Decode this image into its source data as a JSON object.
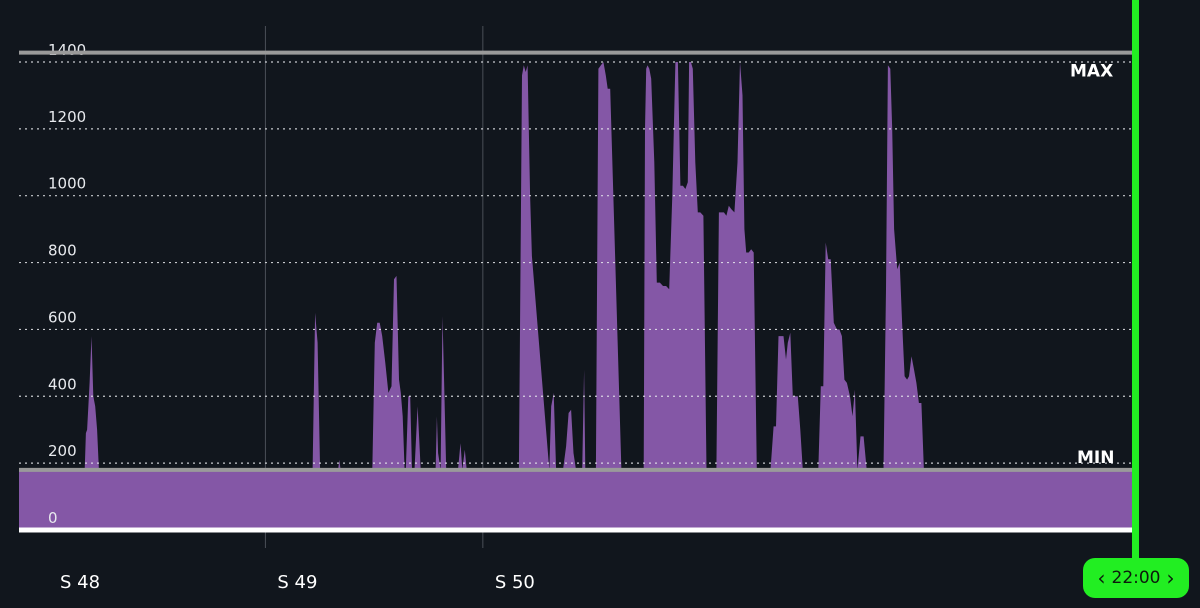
{
  "chart_data": {
    "type": "area",
    "title": "",
    "xlabel": "",
    "ylabel": "",
    "ylim": [
      0,
      1400
    ],
    "yticks": [
      0,
      200,
      400,
      600,
      800,
      1000,
      1200,
      1400
    ],
    "grid": true,
    "week_markers": [
      {
        "label": "S 48",
        "day": 0
      },
      {
        "label": "S 49",
        "day": 7
      },
      {
        "label": "S 50",
        "day": 14
      }
    ],
    "bands": {
      "max": {
        "label": "MAX",
        "value": 1380
      },
      "min": {
        "label": "MIN",
        "value": 180
      }
    },
    "baseline_value": 180,
    "series": [
      {
        "color": "#8457a6",
        "x": [
          1.18,
          1.22,
          1.26,
          1.34,
          1.4,
          1.46,
          1.52,
          1.58,
          1.64,
          1.78,
          8.52,
          8.6,
          8.68,
          8.76,
          9.34,
          9.38,
          9.42,
          10.44,
          10.52,
          10.6,
          10.68,
          10.76,
          10.86,
          10.96,
          11.06,
          11.14,
          11.22,
          11.3,
          11.36,
          11.42,
          11.48,
          11.52,
          11.6,
          11.66,
          11.72,
          11.8,
          11.9,
          12.0,
          12.48,
          12.52,
          12.56,
          12.64,
          12.7,
          12.76,
          12.82,
          13.2,
          13.28,
          13.34,
          13.42,
          13.48,
          13.54,
          15.16,
          15.26,
          15.32,
          15.38,
          15.44,
          15.48,
          15.52,
          15.58,
          15.64,
          16.14,
          16.2,
          16.28,
          16.36,
          16.44,
          16.5,
          16.58,
          16.68,
          16.76,
          16.84,
          16.92,
          17.0,
          17.1,
          17.2,
          17.26,
          17.3,
          17.64,
          17.72,
          17.8,
          17.88,
          17.96,
          18.02,
          18.1,
          18.46,
          18.54,
          18.62,
          19.18,
          19.22,
          19.26,
          19.3,
          19.36,
          19.42,
          19.52,
          19.6,
          19.7,
          19.8,
          19.9,
          20.0,
          20.1,
          20.2,
          20.28,
          20.36,
          20.44,
          20.52,
          20.6,
          20.64,
          20.7,
          20.76,
          20.84,
          20.92,
          21.0,
          21.1,
          21.2,
          21.28,
          21.34,
          21.4,
          21.44,
          21.48,
          21.52,
          21.6,
          21.68,
          21.76,
          21.84,
          21.92,
          22.0,
          22.1,
          22.2,
          22.28,
          22.36,
          22.42,
          22.48,
          22.56,
          22.64,
          22.72,
          22.82,
          22.9,
          22.98,
          23.04,
          23.18,
          23.26,
          23.36,
          23.44,
          23.52,
          23.6,
          23.68,
          23.76,
          23.82,
          23.9,
          23.98,
          24.06,
          24.14,
          24.22,
          24.3,
          24.36,
          24.64,
          24.72,
          24.8,
          24.88,
          24.96,
          25.04,
          25.12,
          25.2,
          25.3,
          25.4,
          25.48,
          25.56,
          25.64,
          25.72,
          25.82,
          25.9,
          25.98,
          26.06,
          26.16,
          26.26,
          26.36,
          26.46,
          26.56,
          26.64,
          26.74,
          26.82,
          26.9,
          26.98,
          27.04,
          27.12,
          27.18,
          27.24,
          27.34,
          27.42,
          27.5,
          27.58,
          27.66,
          27.72,
          27.8,
          27.88,
          27.96,
          28.04,
          28.12,
          28.2,
          28.26,
          28.3
        ],
        "y": [
          180,
          290,
          300,
          440,
          580,
          400,
          370,
          300,
          180,
          180,
          180,
          650,
          560,
          180,
          180,
          210,
          180,
          180,
          560,
          620,
          620,
          580,
          500,
          410,
          430,
          750,
          760,
          450,
          410,
          340,
          180,
          180,
          400,
          400,
          180,
          180,
          370,
          180,
          180,
          340,
          230,
          180,
          640,
          420,
          180,
          180,
          260,
          180,
          240,
          180,
          180,
          180,
          1360,
          1390,
          1370,
          1390,
          1200,
          1000,
          820,
          750,
          180,
          370,
          410,
          180,
          180,
          180,
          180,
          250,
          350,
          360,
          230,
          180,
          180,
          180,
          480,
          180,
          180,
          1380,
          1390,
          1400,
          1360,
          1320,
          1320,
          180,
          180,
          180,
          180,
          1200,
          1380,
          1390,
          1380,
          1350,
          1100,
          740,
          740,
          730,
          730,
          720,
          1000,
          1400,
          1400,
          1030,
          1030,
          1020,
          1040,
          1400,
          1400,
          1380,
          1100,
          950,
          950,
          940,
          180,
          180,
          180,
          180,
          180,
          180,
          180,
          950,
          950,
          950,
          940,
          970,
          960,
          950,
          1100,
          1400,
          1300,
          900,
          830,
          830,
          840,
          830,
          180,
          180,
          180,
          180,
          180,
          180,
          310,
          310,
          580,
          580,
          580,
          510,
          560,
          590,
          400,
          400,
          400,
          300,
          180,
          180,
          180,
          180,
          180,
          430,
          430,
          860,
          810,
          810,
          620,
          600,
          600,
          580,
          450,
          440,
          400,
          340,
          420,
          180,
          280,
          280,
          180,
          180,
          180,
          180,
          180,
          180,
          180,
          720,
          1390,
          1380,
          1200,
          900,
          780,
          800,
          620,
          460,
          450,
          460,
          520,
          480,
          440,
          380,
          380,
          180,
          180,
          180
        ]
      }
    ]
  },
  "badge": {
    "time": "22:00",
    "left_icon": "chevron-left-icon",
    "right_icon": "chevron-right-icon",
    "color": "#22ee22"
  },
  "colors": {
    "background": "#11161d",
    "fill": "#8457a6",
    "band_line": "#9a9a9a",
    "now_line": "#22ee22",
    "zero_line": "#ffffff"
  }
}
